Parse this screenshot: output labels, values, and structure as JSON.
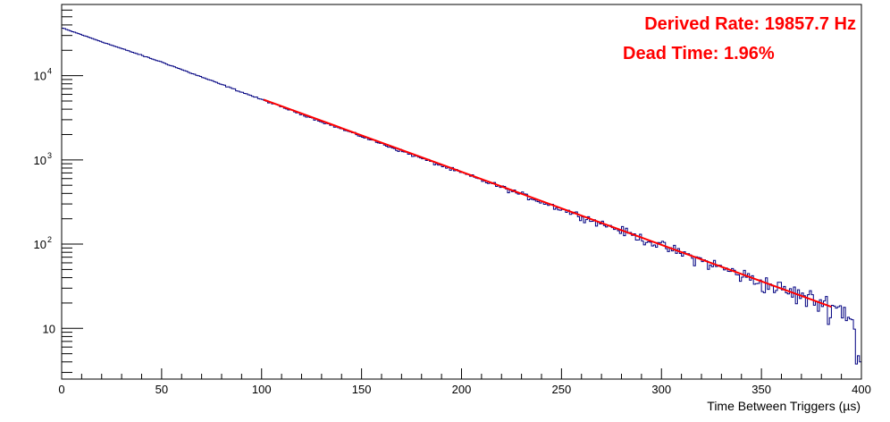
{
  "chart_data": {
    "type": "line",
    "title": "",
    "xlabel": "Time Between Triggers (µs)",
    "ylabel": "",
    "xlim": [
      0,
      400
    ],
    "ylim": [
      2.5,
      70000
    ],
    "yscale": "log",
    "grid": false,
    "x_ticks": [
      "0",
      "50",
      "100",
      "150",
      "200",
      "250",
      "300",
      "350",
      "400"
    ],
    "y_ticks": [
      {
        "value": 10,
        "base": "10",
        "exp": ""
      },
      {
        "value": 100,
        "base": "10",
        "exp": "2"
      },
      {
        "value": 1000,
        "base": "10",
        "exp": "3"
      },
      {
        "value": 10000,
        "base": "10",
        "exp": "4"
      }
    ],
    "annotations": [
      "Derived Rate: 19857.7 Hz",
      "Dead Time: 1.96%"
    ],
    "colors": {
      "histogram": "#000080",
      "fit": "#ff0000",
      "annotation": "#ff0000"
    },
    "series": [
      {
        "kind": "histogram",
        "bin_width": 1,
        "x": [
          0,
          25,
          50,
          75,
          100,
          125,
          150,
          175,
          200,
          225,
          250,
          275,
          300,
          325,
          350,
          375,
          390,
          395,
          399
        ],
        "values": [
          37000,
          23000,
          14500,
          8700,
          5200,
          3150,
          1900,
          1150,
          700,
          430,
          260,
          160,
          95,
          58,
          35,
          22,
          17,
          14,
          4
        ]
      },
      {
        "kind": "fit",
        "x": [
          101,
          385
        ],
        "values": [
          5200,
          18
        ]
      }
    ]
  }
}
